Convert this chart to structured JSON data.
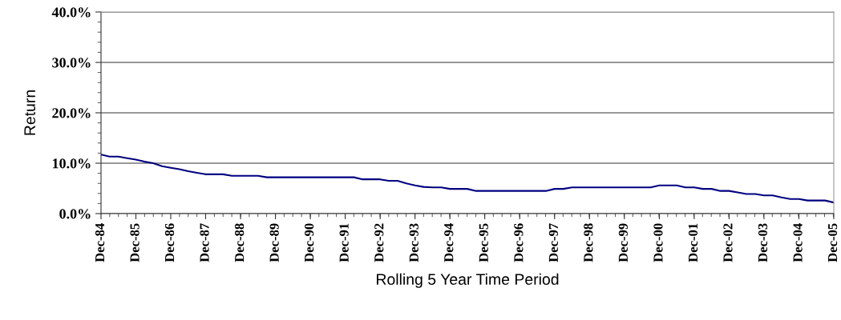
{
  "chart_data": {
    "type": "line",
    "xlabel": "Rolling 5 Year Time Period",
    "ylabel": "Return",
    "x": [
      "1984-12",
      "1985-03",
      "1985-06",
      "1985-09",
      "1985-12",
      "1986-03",
      "1986-06",
      "1986-09",
      "1986-12",
      "1987-03",
      "1987-06",
      "1987-09",
      "1987-12",
      "1988-03",
      "1988-06",
      "1988-09",
      "1988-12",
      "1989-03",
      "1989-06",
      "1989-09",
      "1989-12",
      "1990-03",
      "1990-06",
      "1990-09",
      "1990-12",
      "1991-03",
      "1991-06",
      "1991-09",
      "1991-12",
      "1992-03",
      "1992-06",
      "1992-09",
      "1992-12",
      "1993-03",
      "1993-06",
      "1993-09",
      "1993-12",
      "1994-03",
      "1994-06",
      "1994-09",
      "1994-12",
      "1995-03",
      "1995-06",
      "1995-09",
      "1995-12",
      "1996-03",
      "1996-06",
      "1996-09",
      "1996-12",
      "1997-03",
      "1997-06",
      "1997-09",
      "1997-12",
      "1998-03",
      "1998-06",
      "1998-09",
      "1998-12",
      "1999-03",
      "1999-06",
      "1999-09",
      "1999-12",
      "2000-03",
      "2000-06",
      "2000-09",
      "2000-12",
      "2001-03",
      "2001-06",
      "2001-09",
      "2001-12",
      "2002-03",
      "2002-06",
      "2002-09",
      "2002-12",
      "2003-03",
      "2003-06",
      "2003-09",
      "2003-12",
      "2004-03",
      "2004-06",
      "2004-09",
      "2004-12",
      "2005-03",
      "2005-06",
      "2005-09",
      "2005-12"
    ],
    "series": [
      {
        "color": "#000080",
        "values": [
          11.7,
          11.3,
          11.3,
          11.0,
          10.7,
          10.3,
          10.0,
          9.4,
          9.1,
          8.8,
          8.4,
          8.1,
          7.8,
          7.8,
          7.8,
          7.5,
          7.5,
          7.5,
          7.5,
          7.2,
          7.2,
          7.2,
          7.2,
          7.2,
          7.2,
          7.2,
          7.2,
          7.2,
          7.2,
          7.2,
          6.8,
          6.8,
          6.8,
          6.5,
          6.5,
          6.0,
          5.6,
          5.3,
          5.2,
          5.2,
          4.9,
          4.9,
          4.9,
          4.5,
          4.5,
          4.5,
          4.5,
          4.5,
          4.5,
          4.5,
          4.5,
          4.5,
          4.9,
          4.9,
          5.2,
          5.2,
          5.2,
          5.2,
          5.2,
          5.2,
          5.2,
          5.2,
          5.2,
          5.2,
          5.6,
          5.6,
          5.6,
          5.2,
          5.2,
          4.9,
          4.9,
          4.5,
          4.5,
          4.2,
          3.9,
          3.9,
          3.6,
          3.6,
          3.2,
          2.9,
          2.9,
          2.6,
          2.6,
          2.6,
          2.2
        ]
      }
    ],
    "xlim": [
      "1984-12",
      "2005-12"
    ],
    "xticks": [
      {
        "value": "1984-12",
        "label": "Dec-84"
      },
      {
        "value": "1985-12",
        "label": "Dec-85"
      },
      {
        "value": "1986-12",
        "label": "Dec-86"
      },
      {
        "value": "1987-12",
        "label": "Dec-87"
      },
      {
        "value": "1988-12",
        "label": "Dec-88"
      },
      {
        "value": "1989-12",
        "label": "Dec-89"
      },
      {
        "value": "1990-12",
        "label": "Dec-90"
      },
      {
        "value": "1991-12",
        "label": "Dec-91"
      },
      {
        "value": "1992-12",
        "label": "Dec-92"
      },
      {
        "value": "1993-12",
        "label": "Dec-93"
      },
      {
        "value": "1994-12",
        "label": "Dec-94"
      },
      {
        "value": "1995-12",
        "label": "Dec-95"
      },
      {
        "value": "1996-12",
        "label": "Dec-96"
      },
      {
        "value": "1997-12",
        "label": "Dec-97"
      },
      {
        "value": "1998-12",
        "label": "Dec-98"
      },
      {
        "value": "1999-12",
        "label": "Dec-99"
      },
      {
        "value": "2000-12",
        "label": "Dec-00"
      },
      {
        "value": "2001-12",
        "label": "Dec-01"
      },
      {
        "value": "2002-12",
        "label": "Dec-02"
      },
      {
        "value": "2003-12",
        "label": "Dec-03"
      },
      {
        "value": "2004-12",
        "label": "Dec-04"
      },
      {
        "value": "2005-12",
        "label": "Dec-05"
      }
    ],
    "ylim": [
      0,
      40
    ],
    "yticks": [
      {
        "value": 0,
        "label": "0.0%"
      },
      {
        "value": 10,
        "label": "10.0%"
      },
      {
        "value": 20,
        "label": "20.0%"
      },
      {
        "value": 30,
        "label": "30.0%"
      },
      {
        "value": 40,
        "label": "40.0%"
      }
    ],
    "grid": "y",
    "legend": false,
    "marker": "none",
    "line_style": "solid"
  }
}
